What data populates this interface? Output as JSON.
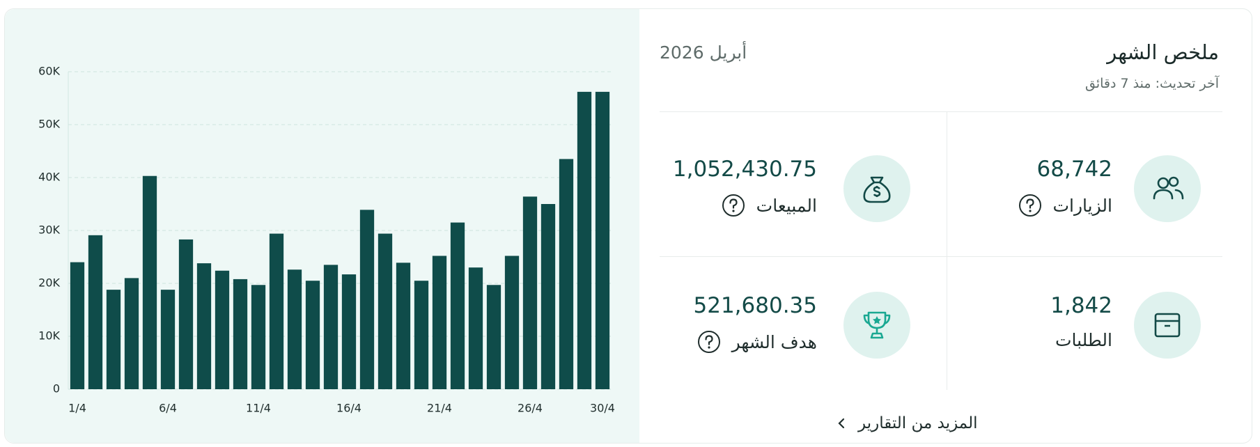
{
  "header": {
    "title": "ملخص الشهر",
    "subtitle": "آخر تحديث: منذ 7 دقائق",
    "period": "أبريل 2026"
  },
  "stats": [
    {
      "label": "الزيارات",
      "value": "68,742"
    },
    {
      "label": "المبيعات",
      "value": "1,052,430.75"
    },
    {
      "label": "الطلبات",
      "value": "1,842"
    },
    {
      "label": "هدف الشهر",
      "value": "521,680.35"
    }
  ],
  "footer": {
    "link": "المزيد من التقارير"
  },
  "chart_data": {
    "type": "bar",
    "categories": [
      "1/4",
      null,
      null,
      null,
      null,
      "6/4",
      null,
      null,
      null,
      null,
      "11/4",
      null,
      null,
      null,
      null,
      "16/4",
      null,
      null,
      null,
      null,
      "21/4",
      null,
      null,
      null,
      null,
      "26/4",
      null,
      null,
      null,
      "30/4"
    ],
    "values": [
      24000,
      29100,
      18800,
      21000,
      40300,
      18800,
      28300,
      23800,
      22400,
      20800,
      19700,
      29400,
      22600,
      20500,
      23500,
      21700,
      33900,
      29400,
      23900,
      20500,
      25200,
      31500,
      23000,
      19700,
      25200,
      36400,
      35000,
      43500,
      56200,
      56200
    ],
    "color": "#0f4c4a",
    "ylim": [
      0,
      60000
    ],
    "yticks": [
      0,
      {
        "value": 10000,
        "label": "10K"
      },
      {
        "value": 20000,
        "label": "20K"
      },
      {
        "value": 30000,
        "label": "30K"
      },
      {
        "value": 40000,
        "label": "40K"
      },
      {
        "value": 50000,
        "label": "50K"
      },
      {
        "value": 60000,
        "label": "60K"
      }
    ],
    "grid": true
  }
}
